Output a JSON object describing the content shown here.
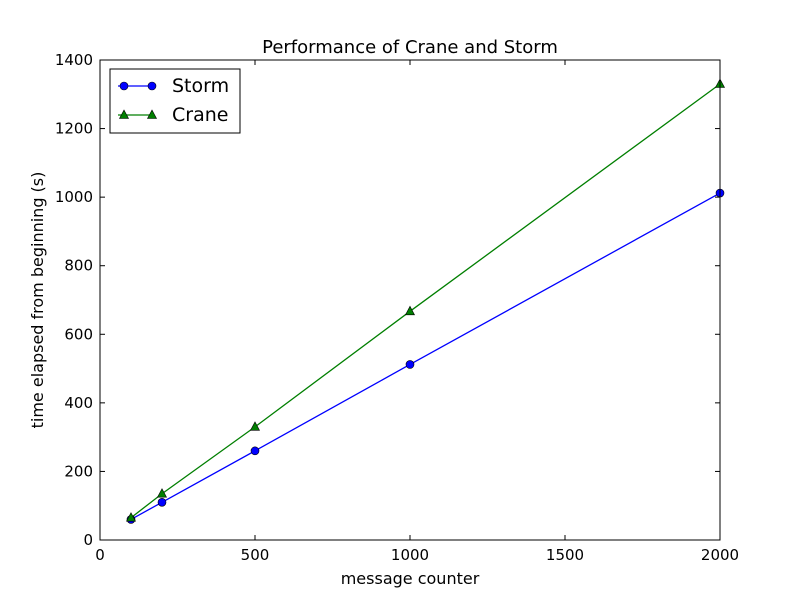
{
  "chart_data": {
    "type": "line",
    "title": "Performance of Crane and Storm",
    "xlabel": "message counter",
    "ylabel": "time elapsed from beginning (s)",
    "xlim": [
      0,
      2000
    ],
    "ylim": [
      0,
      1400
    ],
    "xticks": [
      0,
      500,
      1000,
      1500,
      2000
    ],
    "yticks": [
      0,
      200,
      400,
      600,
      800,
      1000,
      1200,
      1400
    ],
    "grid": false,
    "legend_position": "top-left",
    "x": [
      100,
      200,
      500,
      1000,
      2000
    ],
    "series": [
      {
        "name": "Storm",
        "marker": "circle",
        "color": "#0000ff",
        "values": [
          60,
          110,
          260,
          512,
          1012
        ]
      },
      {
        "name": "Crane",
        "marker": "triangle",
        "color": "#007f00",
        "values": [
          65,
          135,
          330,
          667,
          1330
        ]
      }
    ]
  }
}
